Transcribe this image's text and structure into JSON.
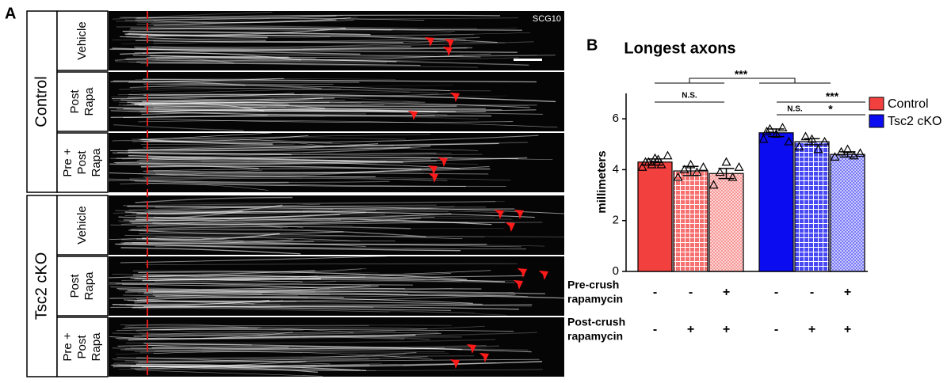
{
  "panel_a": {
    "letter": "A",
    "stain": "SCG10",
    "groups": [
      {
        "label": "Control",
        "rows": [
          "Vehicle",
          [
            "Post",
            "Rapa"
          ],
          [
            "Pre +",
            "Post",
            "Rapa"
          ]
        ]
      },
      {
        "label": "Tsc2 cKO",
        "rows": [
          "Vehicle",
          [
            "Post",
            "Rapa"
          ],
          [
            "Pre +",
            "Post",
            "Rapa"
          ]
        ]
      }
    ]
  },
  "chart_data": {
    "type": "bar",
    "letter": "B",
    "title": "Longest axons",
    "ylabel": "millimeters",
    "ylim": [
      0,
      7
    ],
    "yticks": [
      0,
      2,
      4,
      6
    ],
    "categories": [
      null,
      null,
      null
    ],
    "patterns": [
      "solid",
      "grid",
      "checker"
    ],
    "legend": "top-right",
    "series": [
      {
        "name": "Control",
        "color": "#f2403f",
        "values": [
          4.3,
          3.95,
          3.85
        ],
        "errors": [
          0.12,
          0.18,
          0.2
        ],
        "points": [
          [
            4.1,
            4.3,
            4.45,
            4.2,
            4.55,
            4.3,
            4.2,
            4.4
          ],
          [
            3.7,
            4.0,
            4.2,
            3.9,
            4.1
          ],
          [
            3.4,
            3.9,
            4.3,
            3.7,
            4.1
          ]
        ]
      },
      {
        "name": "Tsc2 cKO",
        "color": "#0c0cf0",
        "values": [
          5.45,
          5.1,
          4.6
        ],
        "errors": [
          0.15,
          0.12,
          0.1
        ],
        "points": [
          [
            5.2,
            5.6,
            5.4,
            5.65,
            5.1,
            5.5
          ],
          [
            4.9,
            5.3,
            5.2,
            4.8,
            5.1
          ],
          [
            4.5,
            4.7,
            4.8,
            4.55,
            4.65
          ]
        ]
      }
    ],
    "conditions": [
      {
        "label": [
          "Pre-crush",
          "rapamycin"
        ],
        "signs": [
          "-",
          "-",
          "+",
          "-",
          "-",
          "+"
        ]
      },
      {
        "label": [
          "Post-crush",
          "rapamycin"
        ],
        "signs": [
          "-",
          "+",
          "+",
          "-",
          "+",
          "+"
        ]
      }
    ],
    "annotations": [
      "***",
      "N.S.",
      "N.S.",
      "***",
      "*"
    ]
  }
}
